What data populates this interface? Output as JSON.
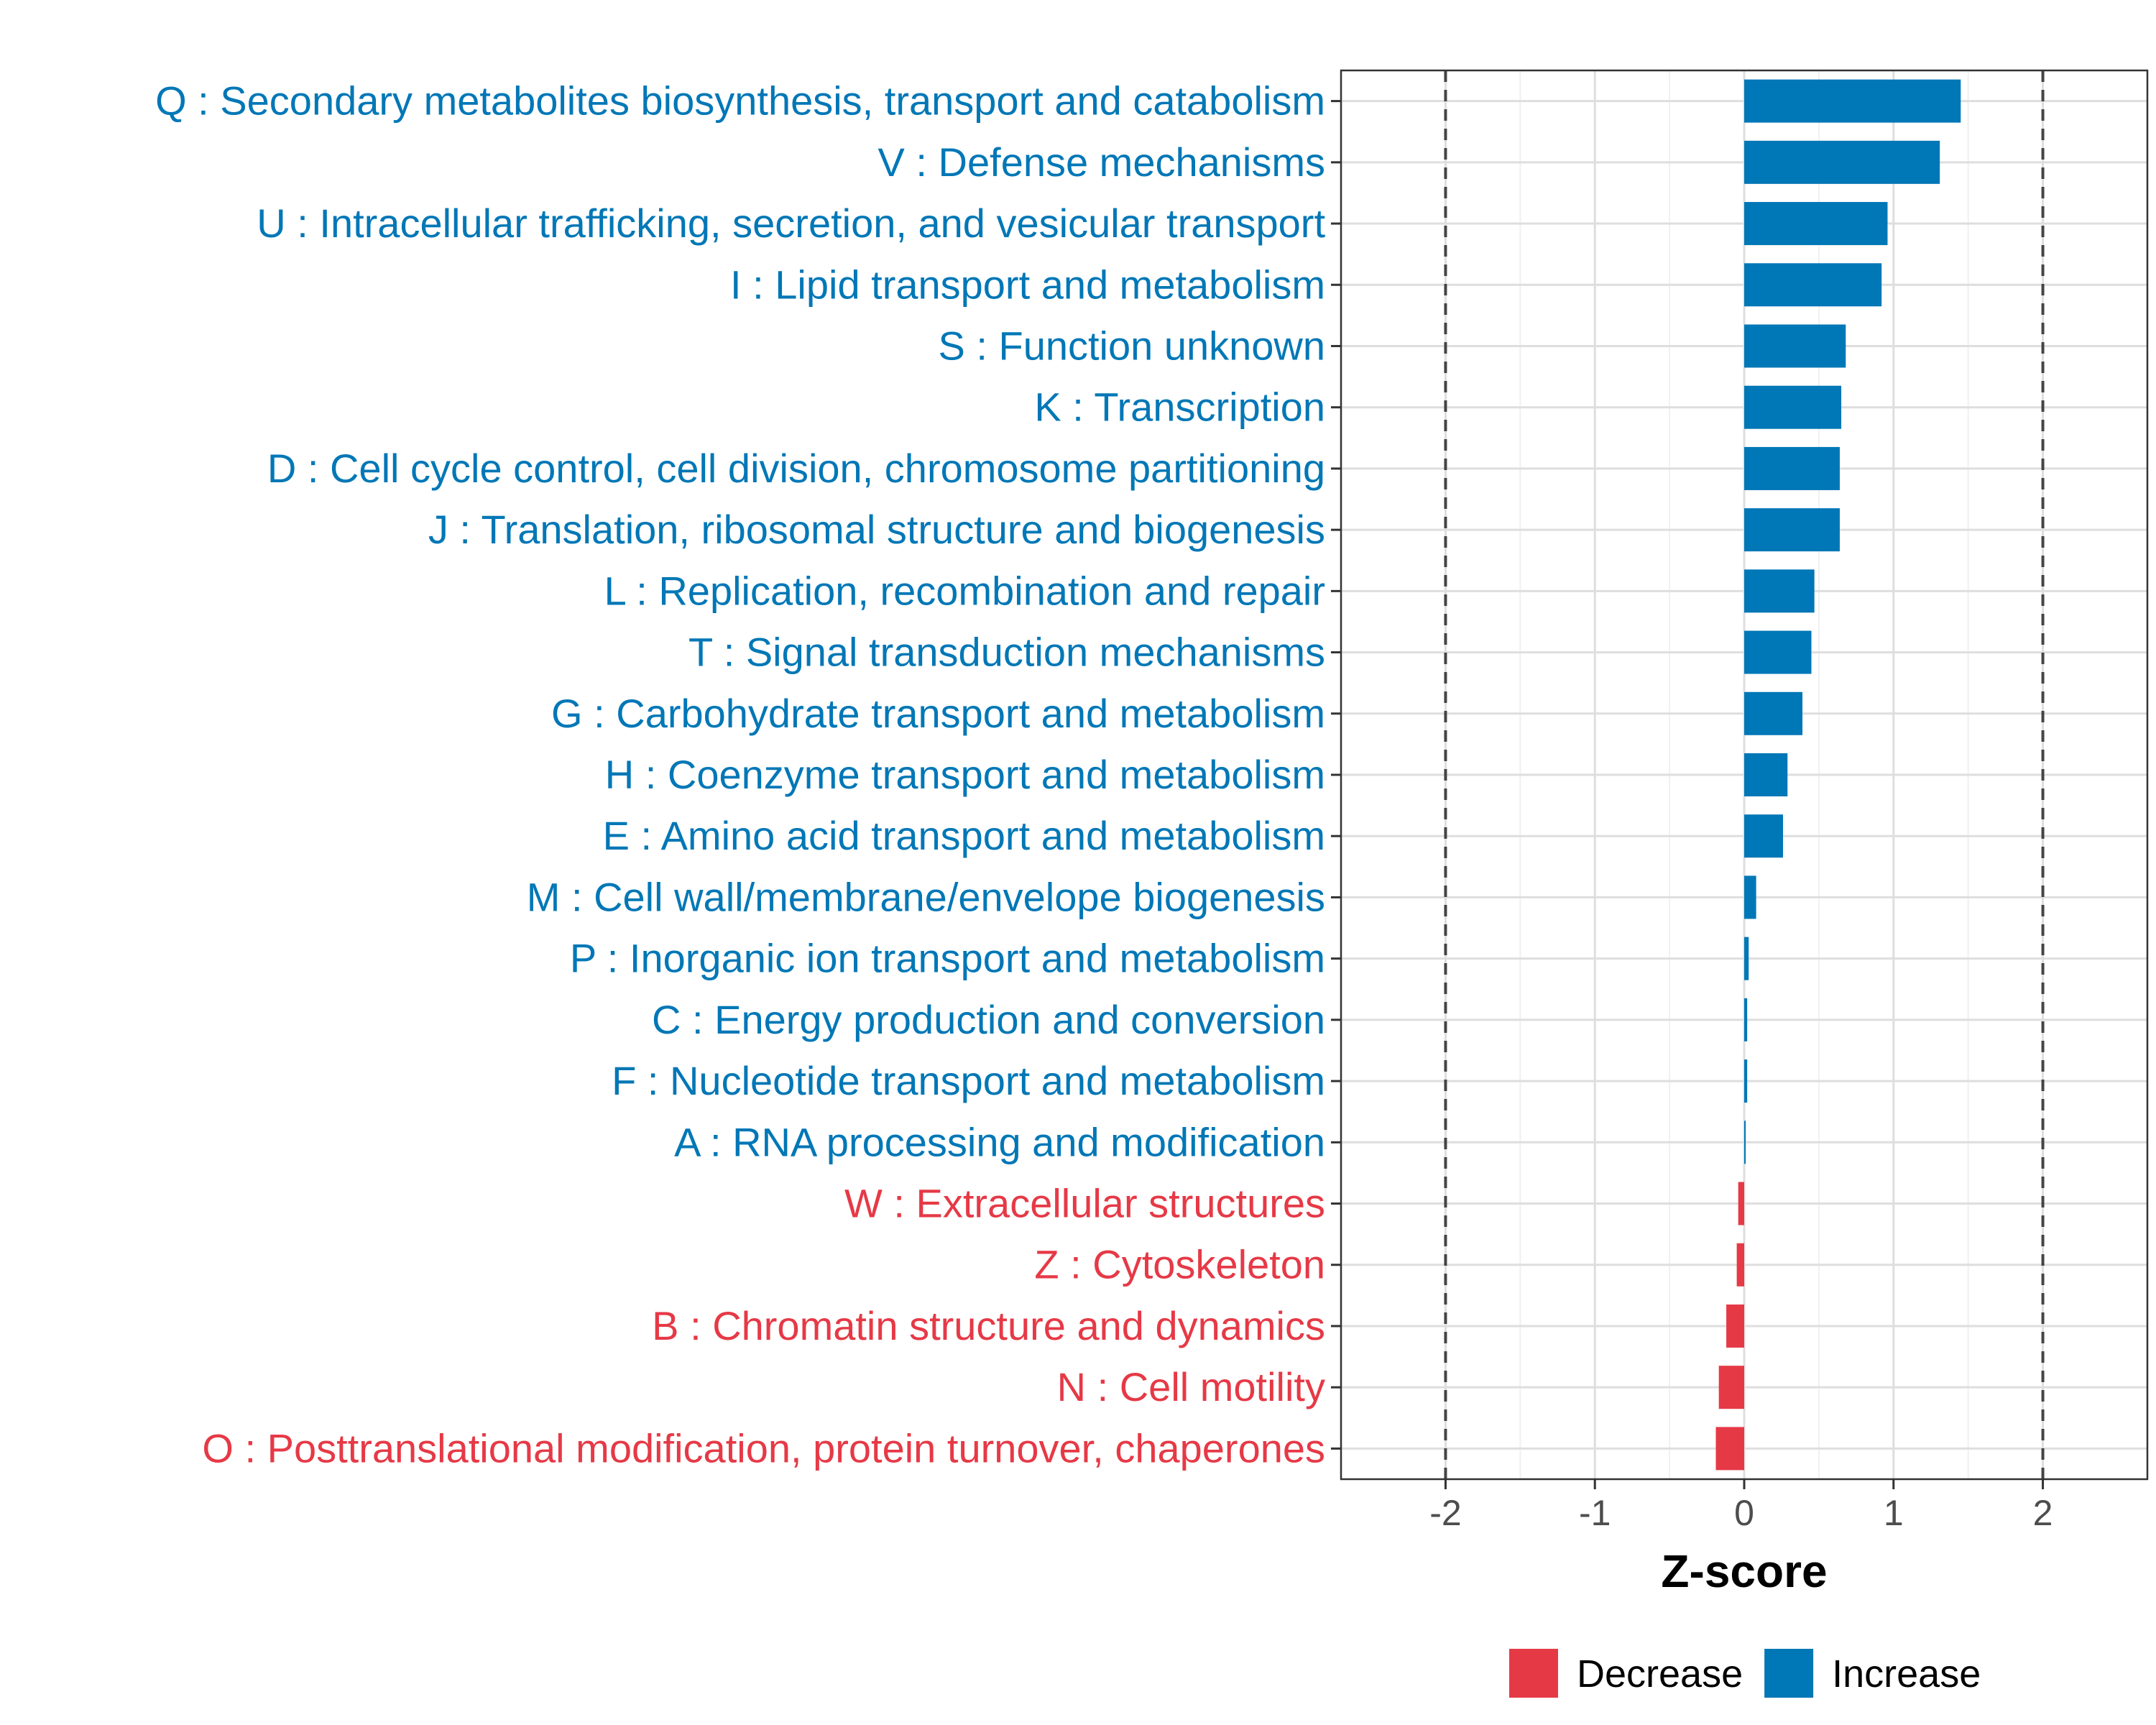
{
  "chart_data": {
    "type": "bar",
    "orientation": "horizontal",
    "xlabel": "Z-score",
    "ylabel": "",
    "xlim": [
      -2.7,
      2.7
    ],
    "xticks": [
      -2,
      -1,
      0,
      1,
      2
    ],
    "xtick_labels": [
      "-2",
      "-1",
      "0",
      "1",
      "2"
    ],
    "reference_lines": [
      -2,
      2
    ],
    "grid": true,
    "legend_position": "bottom",
    "legend": [
      {
        "name": "Decrease",
        "color": "#e63946"
      },
      {
        "name": "Increase",
        "color": "#0077b6"
      }
    ],
    "categories": [
      "Q : Secondary metabolites biosynthesis, transport and catabolism",
      "V : Defense mechanisms",
      "U : Intracellular trafficking, secretion, and vesicular transport",
      "I : Lipid transport and metabolism",
      "S : Function unknown",
      "K : Transcription",
      "D : Cell cycle control, cell division, chromosome partitioning",
      "J : Translation, ribosomal structure and biogenesis",
      "L : Replication, recombination and repair",
      "T : Signal transduction mechanisms",
      "G : Carbohydrate transport and metabolism",
      "H : Coenzyme transport and metabolism",
      "E : Amino acid transport and metabolism",
      "M : Cell wall/membrane/envelope biogenesis",
      "P : Inorganic ion transport and metabolism",
      "C : Energy production and conversion",
      "F : Nucleotide transport and metabolism",
      "A : RNA processing and modification",
      "W : Extracellular structures",
      "Z : Cytoskeleton",
      "B : Chromatin structure and dynamics",
      "N : Cell motility",
      "O : Posttranslational modification, protein turnover, chaperones"
    ],
    "values": [
      1.45,
      1.31,
      0.96,
      0.92,
      0.68,
      0.65,
      0.64,
      0.64,
      0.47,
      0.45,
      0.39,
      0.29,
      0.26,
      0.08,
      0.03,
      0.02,
      0.02,
      0.01,
      -0.04,
      -0.05,
      -0.12,
      -0.17,
      -0.19
    ],
    "directions": [
      "Increase",
      "Increase",
      "Increase",
      "Increase",
      "Increase",
      "Increase",
      "Increase",
      "Increase",
      "Increase",
      "Increase",
      "Increase",
      "Increase",
      "Increase",
      "Increase",
      "Increase",
      "Increase",
      "Increase",
      "Increase",
      "Decrease",
      "Decrease",
      "Decrease",
      "Decrease",
      "Decrease"
    ]
  }
}
